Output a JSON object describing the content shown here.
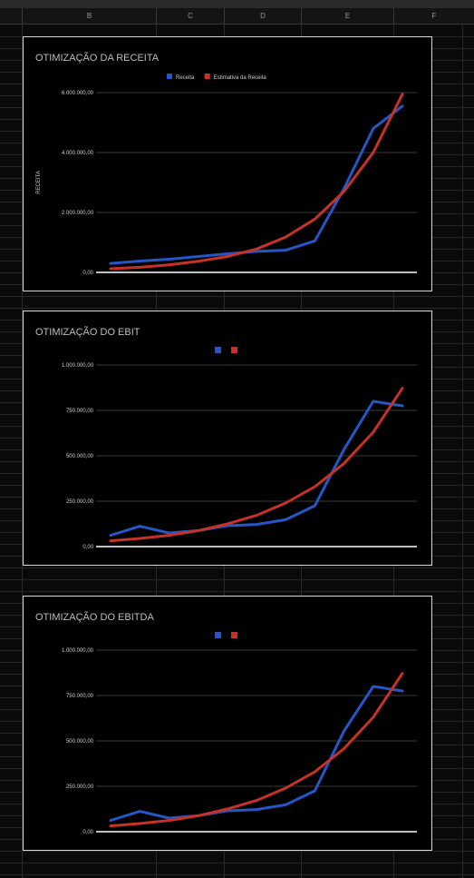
{
  "sheet": {
    "columns": [
      "B",
      "C",
      "D",
      "E",
      "F"
    ]
  },
  "colors": {
    "series_blue": "#2457c5",
    "series_red": "#c63227",
    "gridline": "#3a3a3a",
    "baseline": "#ffffff"
  },
  "chart_data": [
    {
      "type": "line",
      "title": "OTIMIZAÇÃO DA RECEITA",
      "ylabel": "RECEITA",
      "ylim": [
        0,
        6000000
      ],
      "yticks": [
        0,
        2000000,
        4000000,
        6000000
      ],
      "ytick_labels": [
        "0,00",
        "2.000.000,00",
        "4.000.000,00",
        "6.000.000,00"
      ],
      "legend": "top-center",
      "grid": true,
      "series": [
        {
          "name": "Receita",
          "color": "#2457c5",
          "values": [
            300000,
            380000,
            440000,
            530000,
            620000,
            700000,
            740000,
            1050000,
            2800000,
            4800000,
            5550000
          ]
        },
        {
          "name": "Estimativa da Receita",
          "color": "#c63227",
          "values": [
            120000,
            170000,
            250000,
            370000,
            530000,
            780000,
            1180000,
            1780000,
            2700000,
            4000000,
            5950000
          ]
        }
      ]
    },
    {
      "type": "line",
      "title": "OTIMIZAÇÃO DO EBIT",
      "ylabel": "",
      "ylim": [
        0,
        1000000
      ],
      "yticks": [
        0,
        250000,
        500000,
        750000,
        1000000
      ],
      "ytick_labels": [
        "0,00",
        "250.000,00",
        "500.000,00",
        "750.000,00",
        "1.000.000,00"
      ],
      "legend": "top-center",
      "grid": true,
      "series": [
        {
          "color": "#2457c5",
          "values": [
            62000,
            112000,
            75000,
            88000,
            115000,
            122000,
            148000,
            225000,
            535000,
            800000,
            775000
          ]
        },
        {
          "color": "#c63227",
          "values": [
            32000,
            45000,
            62000,
            88000,
            125000,
            172000,
            240000,
            330000,
            458000,
            630000,
            872000
          ]
        }
      ]
    },
    {
      "type": "line",
      "title": "OTIMIZAÇÃO DO EBITDA",
      "ylabel": "",
      "ylim": [
        0,
        1000000
      ],
      "yticks": [
        0,
        250000,
        500000,
        750000,
        1000000
      ],
      "ytick_labels": [
        "0,00",
        "250.000,00",
        "500.000,00",
        "750.000,00",
        "1.000.000,00"
      ],
      "legend": "top-center",
      "grid": true,
      "series": [
        {
          "color": "#2457c5",
          "values": [
            62000,
            112000,
            75000,
            88000,
            115000,
            122000,
            148000,
            225000,
            555000,
            800000,
            775000
          ]
        },
        {
          "color": "#c63227",
          "values": [
            32000,
            45000,
            62000,
            88000,
            125000,
            172000,
            240000,
            330000,
            458000,
            630000,
            872000
          ]
        }
      ]
    }
  ]
}
